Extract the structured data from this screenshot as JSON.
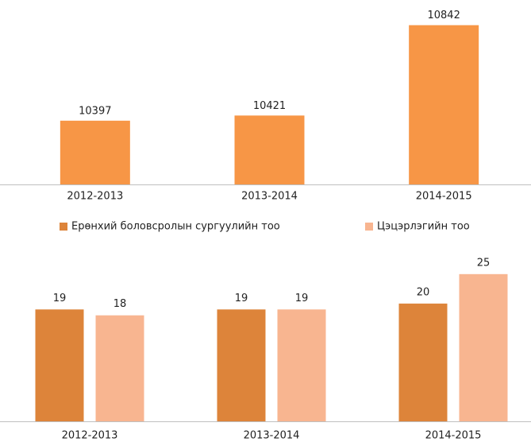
{
  "chart_data": [
    {
      "type": "bar",
      "categories": [
        "2012-2013",
        "2013-2014",
        "2014-2015"
      ],
      "values": [
        10397,
        10421,
        10842
      ],
      "color": "#f79646",
      "ylim": [
        10100,
        10900
      ]
    },
    {
      "type": "grouped_bar",
      "categories": [
        "2012-2013",
        "2013-2014",
        "2014-2015"
      ],
      "series": [
        {
          "name": "Ерөнхий боловсролын сургуулийн тоо",
          "color": "#dd843a",
          "values": [
            19,
            19,
            20
          ]
        },
        {
          "name": "Цэцэрлэгийн тоо",
          "color": "#f8b590",
          "values": [
            18,
            19,
            25
          ]
        }
      ],
      "ylim": [
        0,
        27
      ],
      "legend": "top"
    }
  ]
}
